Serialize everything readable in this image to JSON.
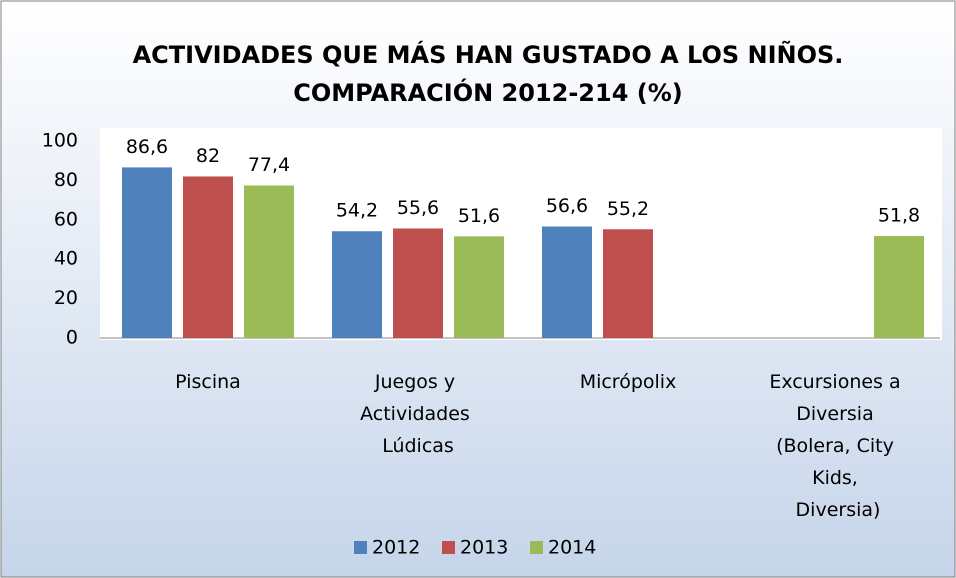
{
  "chart_data": {
    "type": "bar",
    "title": [
      "ACTIVIDADES QUE MÁS HAN GUSTADO A LOS NIÑOS.",
      "COMPARACIÓN 2012-214 (%)"
    ],
    "categories": [
      "Piscina",
      "Juegos y Actividades Lúdicas",
      "Micrópolix",
      "Excursiones a Diversia (Bolera, City Kids, Diversia)"
    ],
    "series": [
      {
        "name": "2012",
        "color": "#4f81bd",
        "values": [
          86.6,
          54.2,
          56.6,
          null
        ],
        "value_labels": [
          "86,6",
          "54,2",
          "56,6",
          null
        ]
      },
      {
        "name": "2013",
        "color": "#c0504d",
        "values": [
          82,
          55.6,
          55.2,
          null
        ],
        "value_labels": [
          "82",
          "55,6",
          "55,2",
          null
        ]
      },
      {
        "name": "2014",
        "color": "#9bbb59",
        "values": [
          77.4,
          51.6,
          null,
          51.8
        ],
        "value_labels": [
          "77,4",
          "51,6",
          null,
          "51,8"
        ]
      }
    ],
    "ylim": [
      0,
      100
    ],
    "yticks": [
      0,
      20,
      40,
      60,
      80,
      100
    ],
    "grid": false,
    "legend": "bottom"
  }
}
